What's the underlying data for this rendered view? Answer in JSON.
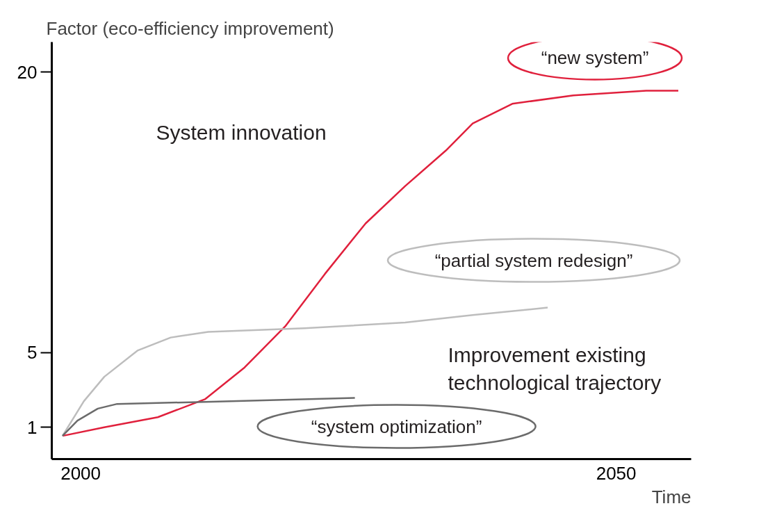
{
  "chart_data": {
    "type": "line",
    "ylabel": "Factor (eco-efficiency improvement)",
    "xlabel": "Time",
    "xlim": [
      1997.3,
      2057
    ],
    "ylim": [
      -0.7,
      21.6
    ],
    "xticks": [
      2000,
      2050
    ],
    "yticks": [
      1,
      5,
      20
    ],
    "grid": false,
    "marker": "none",
    "line_style": "solid",
    "series": [
      {
        "name": "“new system”",
        "color": "#e0203c",
        "x": [
          1998.3,
          2002.2,
          2007.2,
          2011.6,
          2015.3,
          2019.1,
          2022.8,
          2026.6,
          2030.3,
          2034.1,
          2036.6,
          2040.3,
          2046,
          2052.8,
          2055.8
        ],
        "values": [
          0.54,
          1.0,
          1.54,
          2.5,
          4.2,
          6.4,
          9.2,
          11.9,
          13.9,
          15.8,
          17.25,
          18.3,
          18.75,
          19.0,
          19.0
        ]
      },
      {
        "name": "“partial system redesign”",
        "color": "#bdbdbd",
        "x": [
          1998.3,
          2000.3,
          2002.2,
          2005.3,
          2008.4,
          2011.9,
          2020.9,
          2030.3,
          2036.6,
          2043.6
        ],
        "values": [
          0.54,
          2.4,
          3.7,
          5.1,
          5.8,
          6.1,
          6.3,
          6.6,
          7.0,
          7.4
        ]
      },
      {
        "name": "“system optimization”",
        "color": "#6b6b6b",
        "x": [
          1998.3,
          1999.7,
          2001.6,
          2003.4,
          2011.6,
          2025.6
        ],
        "values": [
          0.54,
          1.36,
          2.0,
          2.25,
          2.36,
          2.57
        ]
      }
    ],
    "annotations": [
      "System innovation",
      "Improvement existing\ntechnological trajectory"
    ]
  }
}
